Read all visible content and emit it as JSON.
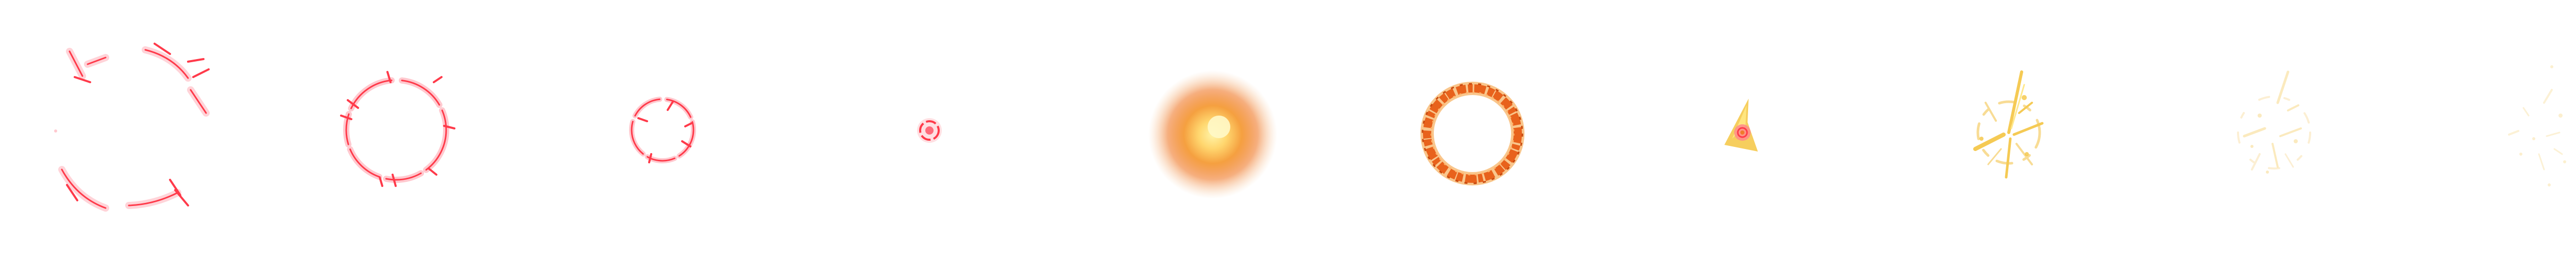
{
  "sprite_sheet": {
    "frame_count": 10,
    "background": "#ffffff",
    "colors": {
      "reticle_red": "#ff3a4a",
      "reticle_pink": "#ffd0d6",
      "glow_yellow": "#ffe680",
      "glow_orange": "#f07a2a",
      "ring_orange": "#e8621c",
      "spark_gold": "#f5c542"
    },
    "frames": [
      {
        "id": 1,
        "stage": "reticle-wide",
        "icon": "target-reticle-icon"
      },
      {
        "id": 2,
        "stage": "reticle-medium",
        "icon": "target-reticle-icon"
      },
      {
        "id": 3,
        "stage": "reticle-small",
        "icon": "target-reticle-icon"
      },
      {
        "id": 4,
        "stage": "reticle-dot",
        "icon": "target-dot-icon"
      },
      {
        "id": 5,
        "stage": "glow-flash",
        "icon": "glow-burst-icon"
      },
      {
        "id": 6,
        "stage": "fire-ring",
        "icon": "fire-ring-icon"
      },
      {
        "id": 7,
        "stage": "impact-spark",
        "icon": "spark-icon"
      },
      {
        "id": 8,
        "stage": "debris-bright",
        "icon": "debris-icon"
      },
      {
        "id": 9,
        "stage": "debris-fading",
        "icon": "debris-icon"
      },
      {
        "id": 10,
        "stage": "debris-faint",
        "icon": "debris-icon"
      }
    ]
  }
}
